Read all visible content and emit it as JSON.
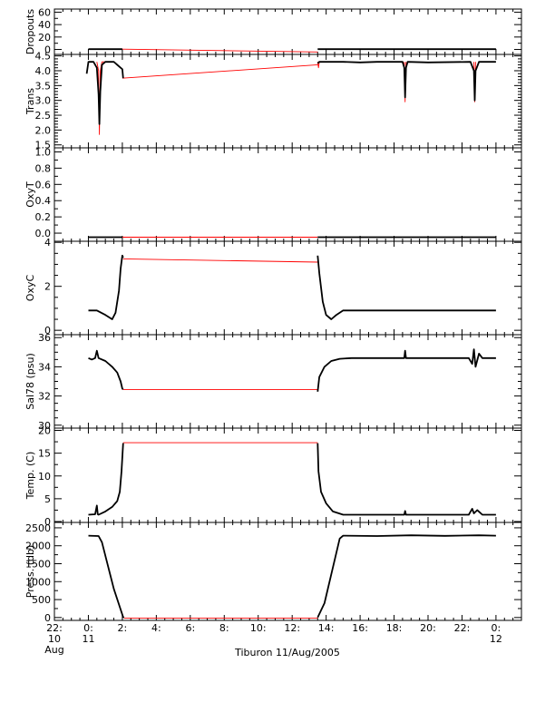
{
  "caption": "Tiburon 11/Aug/2005",
  "colors": {
    "data": "#000000",
    "interp": "#ff0000",
    "axis": "#000000",
    "background": "#ffffff"
  },
  "x_axis": {
    "range": [
      -2.0,
      25.5
    ],
    "ticks": [
      {
        "x": -2,
        "label": [
          "22:",
          "10",
          "Aug"
        ]
      },
      {
        "x": 0,
        "label": [
          "0:",
          "11"
        ]
      },
      {
        "x": 2,
        "label": [
          "2:"
        ]
      },
      {
        "x": 4,
        "label": [
          "4:"
        ]
      },
      {
        "x": 6,
        "label": [
          "6:"
        ]
      },
      {
        "x": 8,
        "label": [
          "8:"
        ]
      },
      {
        "x": 10,
        "label": [
          "10:"
        ]
      },
      {
        "x": 12,
        "label": [
          "12:"
        ]
      },
      {
        "x": 14,
        "label": [
          "14:"
        ]
      },
      {
        "x": 16,
        "label": [
          "16:"
        ]
      },
      {
        "x": 18,
        "label": [
          "18:"
        ]
      },
      {
        "x": 20,
        "label": [
          "20:"
        ]
      },
      {
        "x": 22,
        "label": [
          "22:"
        ]
      },
      {
        "x": 24,
        "label": [
          "0:",
          "12"
        ]
      }
    ],
    "minor_step": 0.5
  },
  "chart_data": [
    {
      "type": "line",
      "ylabel": "Dropouts",
      "ylim": [
        -8,
        65
      ],
      "yticks": [
        0,
        20,
        40,
        60
      ],
      "yminor": 10,
      "segments": [
        {
          "style": "data",
          "x": [
            0,
            2
          ],
          "y": [
            0.5,
            0.5
          ]
        },
        {
          "style": "interp",
          "x": [
            2,
            13.5
          ],
          "y": [
            0.5,
            -4
          ]
        },
        {
          "style": "data",
          "x": [
            13.5,
            24
          ],
          "y": [
            0.5,
            0.5
          ]
        }
      ]
    },
    {
      "type": "line",
      "ylabel": "Trans",
      "ylim": [
        1.4,
        4.55
      ],
      "yticks": [
        1.5,
        2.0,
        2.5,
        3.0,
        3.5,
        4.0,
        4.5
      ],
      "yminor": 0.1,
      "segments": [
        {
          "style": "interp",
          "x": [
            0.5,
            0.6,
            0.65,
            0.7,
            0.8,
            1.0
          ],
          "y": [
            4.3,
            4.0,
            1.85,
            4.0,
            4.3,
            4.3
          ]
        },
        {
          "style": "interp",
          "x": [
            13.5,
            13.55,
            13.6
          ],
          "y": [
            4.3,
            4.1,
            4.3
          ]
        },
        {
          "style": "interp",
          "x": [
            18.6,
            18.65,
            18.7
          ],
          "y": [
            4.3,
            2.95,
            4.3
          ]
        },
        {
          "style": "interp",
          "x": [
            22.7,
            22.75,
            22.8
          ],
          "y": [
            4.3,
            2.95,
            4.3
          ]
        },
        {
          "style": "interp",
          "x": [
            2,
            13.5
          ],
          "y": [
            3.75,
            4.2
          ]
        },
        {
          "style": "data",
          "x": [
            -0.1,
            0,
            0.3,
            0.5,
            0.6,
            0.65,
            0.7,
            0.8,
            1.0,
            1.5,
            1.9,
            2.0,
            2.05
          ],
          "y": [
            3.9,
            4.3,
            4.3,
            4.1,
            3.2,
            2.2,
            3.3,
            4.2,
            4.3,
            4.3,
            4.1,
            4.05,
            3.75
          ]
        },
        {
          "style": "data",
          "x": [
            13.5,
            13.6,
            14,
            15,
            16,
            17,
            18.5,
            18.6,
            18.65,
            18.7,
            18.8,
            20,
            22.5,
            22.7,
            22.75,
            22.8,
            23,
            24
          ],
          "y": [
            4.25,
            4.3,
            4.3,
            4.3,
            4.28,
            4.3,
            4.3,
            4.1,
            3.1,
            4.1,
            4.3,
            4.28,
            4.3,
            4.0,
            3.0,
            4.0,
            4.3,
            4.3
          ]
        }
      ]
    },
    {
      "type": "line",
      "ylabel": "OxyT",
      "ylim": [
        -0.1,
        1.05
      ],
      "yticks": [
        0.0,
        0.2,
        0.4,
        0.6,
        0.8,
        1.0
      ],
      "yminor": 0.1,
      "segments": [
        {
          "style": "data",
          "x": [
            0,
            2
          ],
          "y": [
            -0.05,
            -0.05
          ]
        },
        {
          "style": "interp",
          "x": [
            2,
            13.5
          ],
          "y": [
            -0.05,
            -0.05
          ]
        },
        {
          "style": "data",
          "x": [
            13.5,
            24
          ],
          "y": [
            -0.05,
            -0.05
          ]
        }
      ]
    },
    {
      "type": "line",
      "ylabel": "OxyC",
      "ylim": [
        -0.2,
        4.05
      ],
      "yticks": [
        0,
        2,
        4
      ],
      "yminor": 0.5,
      "segments": [
        {
          "style": "data",
          "x": [
            0,
            0.5,
            1.0,
            1.4,
            1.6,
            1.8,
            1.9,
            2.0,
            2.05
          ],
          "y": [
            0.9,
            0.9,
            0.7,
            0.5,
            0.8,
            1.8,
            2.8,
            3.4,
            3.3
          ]
        },
        {
          "style": "interp",
          "x": [
            2.05,
            13.5
          ],
          "y": [
            3.25,
            3.1
          ]
        },
        {
          "style": "data",
          "x": [
            13.5,
            13.6,
            13.8,
            14.0,
            14.3,
            14.6,
            15,
            17,
            20,
            24
          ],
          "y": [
            3.4,
            2.6,
            1.3,
            0.7,
            0.5,
            0.7,
            0.9,
            0.9,
            0.9,
            0.9
          ]
        }
      ]
    },
    {
      "type": "line",
      "ylabel": "Sal78 (psu)",
      "ylim": [
        29.8,
        36.2
      ],
      "yticks": [
        30,
        32,
        34,
        36
      ],
      "yminor": 0.5,
      "segments": [
        {
          "style": "data",
          "x": [
            0,
            0.2,
            0.4,
            0.5,
            0.6,
            1.0,
            1.4,
            1.7,
            1.9,
            2.0,
            2.05
          ],
          "y": [
            34.6,
            34.5,
            34.6,
            35.1,
            34.6,
            34.4,
            34.0,
            33.6,
            33.0,
            32.5,
            32.45
          ]
        },
        {
          "style": "interp",
          "x": [
            2.05,
            13.5
          ],
          "y": [
            32.45,
            32.45
          ]
        },
        {
          "style": "data",
          "x": [
            13.5,
            13.6,
            13.9,
            14.3,
            14.8,
            15.5,
            18.6,
            18.65,
            18.7,
            22.4,
            22.6,
            22.7,
            22.8,
            23.0,
            23.2,
            24
          ],
          "y": [
            32.3,
            33.3,
            34.0,
            34.4,
            34.55,
            34.6,
            34.6,
            35.1,
            34.6,
            34.6,
            34.2,
            35.2,
            34.0,
            34.9,
            34.6,
            34.6
          ]
        }
      ]
    },
    {
      "type": "line",
      "ylabel": "Temp. (C)",
      "ylim": [
        -0.2,
        20.5
      ],
      "yticks": [
        0,
        5,
        10,
        15,
        20
      ],
      "yminor": 2.5,
      "segments": [
        {
          "style": "data",
          "x": [
            0,
            0.4,
            0.5,
            0.55,
            0.6,
            1.0,
            1.4,
            1.7,
            1.85,
            1.95,
            2.05
          ],
          "y": [
            1.5,
            1.6,
            3.5,
            1.6,
            1.5,
            2.2,
            3.2,
            4.5,
            6.5,
            11.0,
            17.2
          ]
        },
        {
          "style": "interp",
          "x": [
            2.05,
            13.5
          ],
          "y": [
            17.3,
            17.3
          ]
        },
        {
          "style": "data",
          "x": [
            13.5,
            13.55,
            13.7,
            14.0,
            14.4,
            15.0,
            18.6,
            18.65,
            18.7,
            22.4,
            22.6,
            22.7,
            22.9,
            23.2,
            24
          ],
          "y": [
            17.2,
            11.0,
            6.5,
            4.0,
            2.2,
            1.5,
            1.5,
            2.3,
            1.5,
            1.5,
            2.8,
            1.8,
            2.5,
            1.5,
            1.5
          ]
        }
      ]
    },
    {
      "type": "line",
      "ylabel": "Press. (db)",
      "ylim": [
        -80,
        2650
      ],
      "yticks": [
        0,
        500,
        1000,
        1500,
        2000,
        2500
      ],
      "yminor": 250,
      "segments": [
        {
          "style": "data",
          "x": [
            0,
            0.6,
            0.8,
            1.5,
            2.05,
            2.1
          ],
          "y": [
            2280,
            2270,
            2100,
            800,
            10,
            0
          ]
        },
        {
          "style": "interp",
          "x": [
            2.1,
            13.5
          ],
          "y": [
            -20,
            -20
          ]
        },
        {
          "style": "data",
          "x": [
            13.5,
            13.9,
            14.8,
            15.0,
            17,
            19,
            21,
            23,
            24
          ],
          "y": [
            0,
            400,
            2200,
            2280,
            2270,
            2290,
            2275,
            2290,
            2280
          ]
        }
      ]
    }
  ]
}
